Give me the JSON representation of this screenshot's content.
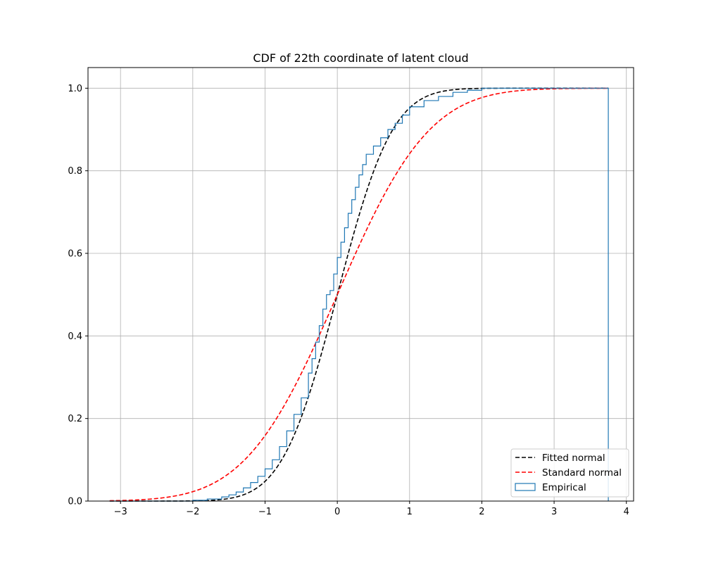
{
  "chart_data": {
    "type": "line",
    "title": "CDF of 22th coordinate of latent cloud",
    "xlabel": "",
    "ylabel": "",
    "xlim": [
      -3.45,
      4.1
    ],
    "ylim": [
      0.0,
      1.05
    ],
    "xticks": [
      -3,
      -2,
      -1,
      0,
      1,
      2,
      3,
      4
    ],
    "xtick_labels": [
      "−3",
      "−2",
      "−1",
      "0",
      "1",
      "2",
      "3",
      "4"
    ],
    "yticks": [
      0.0,
      0.2,
      0.4,
      0.6,
      0.8,
      1.0
    ],
    "ytick_labels": [
      "0.0",
      "0.2",
      "0.4",
      "0.6",
      "0.8",
      "1.0"
    ],
    "grid": true,
    "legend_position": "lower-right",
    "series": [
      {
        "name": "Fitted normal",
        "style": "dashed",
        "color": "#000000",
        "mean": 0.0,
        "std": 0.6,
        "x_range": [
          -3.15,
          3.75
        ]
      },
      {
        "name": "Standard normal",
        "style": "dashed",
        "color": "#ff0000",
        "mean": 0.0,
        "std": 1.0,
        "x_range": [
          -3.15,
          3.75
        ]
      },
      {
        "name": "Empirical",
        "style": "step-histogram",
        "color": "#1f77b4",
        "edges": [
          -3.15,
          -2.0,
          -1.8,
          -1.6,
          -1.5,
          -1.4,
          -1.3,
          -1.2,
          -1.1,
          -1.0,
          -0.9,
          -0.8,
          -0.7,
          -0.6,
          -0.5,
          -0.4,
          -0.35,
          -0.3,
          -0.25,
          -0.2,
          -0.15,
          -0.1,
          -0.05,
          0.0,
          0.05,
          0.1,
          0.15,
          0.2,
          0.25,
          0.3,
          0.35,
          0.4,
          0.5,
          0.6,
          0.7,
          0.8,
          0.9,
          1.0,
          1.2,
          1.4,
          1.6,
          1.8,
          2.0,
          3.75
        ],
        "cdf": [
          0.0,
          0.002,
          0.005,
          0.01,
          0.015,
          0.022,
          0.032,
          0.045,
          0.06,
          0.078,
          0.1,
          0.132,
          0.17,
          0.21,
          0.25,
          0.31,
          0.345,
          0.385,
          0.425,
          0.465,
          0.5,
          0.51,
          0.55,
          0.59,
          0.627,
          0.662,
          0.697,
          0.73,
          0.76,
          0.79,
          0.815,
          0.84,
          0.86,
          0.88,
          0.9,
          0.915,
          0.935,
          0.955,
          0.97,
          0.98,
          0.99,
          0.995,
          1.0
        ]
      }
    ]
  }
}
